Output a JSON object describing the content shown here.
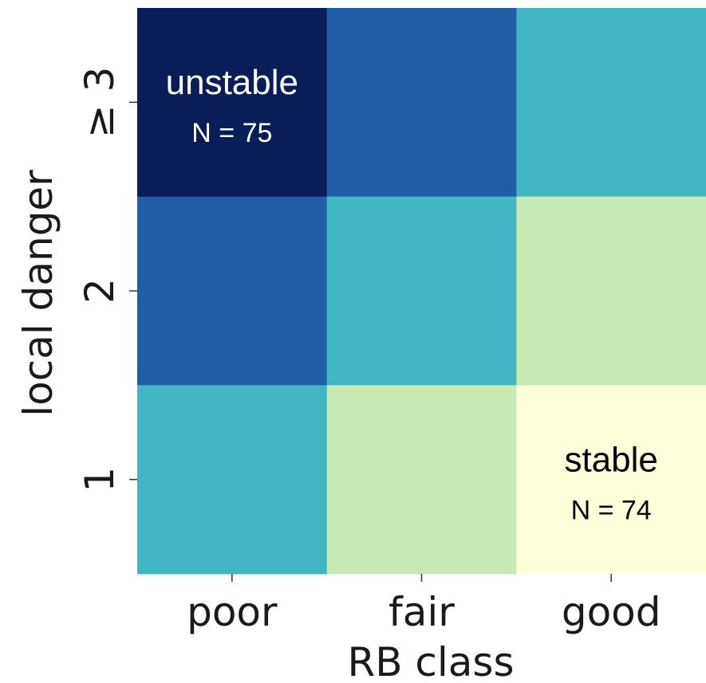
{
  "chart_data": {
    "type": "heatmap",
    "xlabel": "RB class",
    "ylabel": "local danger",
    "x_categories": [
      "poor",
      "fair",
      "good"
    ],
    "y_categories": [
      "≥ 3",
      "2",
      "1"
    ],
    "cell_colors": [
      [
        "#0b1d58",
        "#225ea8",
        "#41b6c4"
      ],
      [
        "#225ea8",
        "#41b6c4",
        "#c7e9b4"
      ],
      [
        "#41b6c4",
        "#c7e9b4",
        "#ffffd9"
      ]
    ],
    "annotations": [
      {
        "row": 0,
        "col": 0,
        "label": "unstable",
        "count": "N = 75",
        "color": "#ffffff"
      },
      {
        "row": 2,
        "col": 2,
        "label": "stable",
        "count": "N = 74",
        "color": "#000000"
      }
    ]
  }
}
